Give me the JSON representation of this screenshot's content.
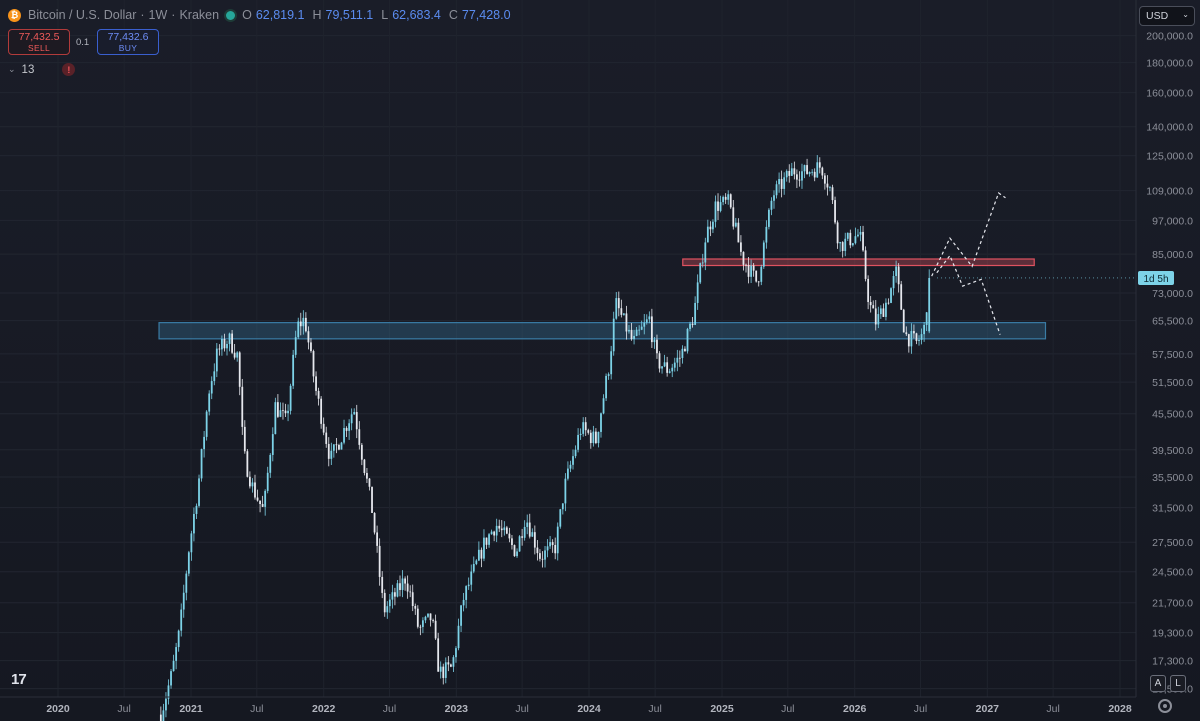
{
  "header": {
    "symbol": "Bitcoin / U.S. Dollar",
    "interval": "1W",
    "exchange": "Kraken",
    "icon": "bitcoin-icon",
    "ohlc": [
      {
        "k": "O",
        "v": "62,819.1"
      },
      {
        "k": "H",
        "v": "79,511.1"
      },
      {
        "k": "L",
        "v": "62,683.4"
      },
      {
        "k": "C",
        "v": "77,428.0"
      }
    ]
  },
  "trade": {
    "sell_price": "77,432.5",
    "sell_label": "SELL",
    "quantity": "0.1",
    "buy_price": "77,432.6",
    "buy_label": "BUY"
  },
  "indicators": {
    "count": "13"
  },
  "currency": "USD",
  "price_tag": "1d 5h",
  "corner": {
    "auto_label": "A",
    "log_label": "L"
  },
  "colors": {
    "up_candle": "#7dd3e8",
    "down_candle": "#e6e8ee",
    "support_zone": "#3a7ca5",
    "resistance_zone": "#e05260",
    "price_tag_bg": "#7dd3e8"
  },
  "chart_data": {
    "type": "candlestick",
    "scale": "log",
    "ylim": [
      15000,
      230000
    ],
    "ytick_labels": [
      "200,000.0",
      "180,000.0",
      "160,000.0",
      "140,000.0",
      "125,000.0",
      "109,000.0",
      "97,000.0",
      "85,000.0",
      "73,000.0",
      "65,500.0",
      "57,500.0",
      "51,500.0",
      "45,500.0",
      "39,500.0",
      "35,500.0",
      "31,500.0",
      "27,500.0",
      "24,500.0",
      "21,700.0",
      "19,300.0",
      "17,300.0",
      "15,500.0"
    ],
    "xtick_labels": [
      {
        "t": "2020",
        "d": "2020-01-01",
        "bold": true
      },
      {
        "t": "Jul",
        "d": "2020-07-01",
        "bold": false
      },
      {
        "t": "2021",
        "d": "2021-01-01",
        "bold": true
      },
      {
        "t": "Jul",
        "d": "2021-07-01",
        "bold": false
      },
      {
        "t": "2022",
        "d": "2022-01-01",
        "bold": true
      },
      {
        "t": "Jul",
        "d": "2022-07-01",
        "bold": false
      },
      {
        "t": "2023",
        "d": "2023-01-01",
        "bold": true
      },
      {
        "t": "Jul",
        "d": "2023-07-01",
        "bold": false
      },
      {
        "t": "2024",
        "d": "2024-01-01",
        "bold": true
      },
      {
        "t": "Jul",
        "d": "2024-07-01",
        "bold": false
      },
      {
        "t": "2025",
        "d": "2025-01-01",
        "bold": true
      },
      {
        "t": "Jul",
        "d": "2025-07-01",
        "bold": false
      },
      {
        "t": "2026",
        "d": "2026-01-01",
        "bold": true
      },
      {
        "t": "Jul",
        "d": "2026-07-01",
        "bold": false
      },
      {
        "t": "2027",
        "d": "2027-01-01",
        "bold": true
      },
      {
        "t": "Jul",
        "d": "2027-07-01",
        "bold": false
      },
      {
        "t": "2028",
        "d": "2028-01-01",
        "bold": true
      }
    ],
    "price_path": [
      [
        "2020-10-10",
        14000
      ],
      [
        "2020-11-10",
        16500
      ],
      [
        "2020-12-01",
        19500
      ],
      [
        "2020-12-25",
        26500
      ],
      [
        "2021-01-20",
        34000
      ],
      [
        "2021-02-20",
        50000
      ],
      [
        "2021-03-15",
        58000
      ],
      [
        "2021-04-15",
        61000
      ],
      [
        "2021-05-10",
        57000
      ],
      [
        "2021-05-25",
        39000
      ],
      [
        "2021-06-20",
        34000
      ],
      [
        "2021-07-20",
        31000
      ],
      [
        "2021-08-20",
        47000
      ],
      [
        "2021-09-20",
        44000
      ],
      [
        "2021-10-20",
        64000
      ],
      [
        "2021-11-10",
        66000
      ],
      [
        "2021-12-10",
        50000
      ],
      [
        "2022-01-20",
        38000
      ],
      [
        "2022-03-25",
        46500
      ],
      [
        "2022-05-15",
        31000
      ],
      [
        "2022-06-15",
        21000
      ],
      [
        "2022-07-20",
        22500
      ],
      [
        "2022-08-15",
        24000
      ],
      [
        "2022-09-20",
        19500
      ],
      [
        "2022-10-25",
        20500
      ],
      [
        "2022-11-15",
        16500
      ],
      [
        "2022-12-20",
        16800
      ],
      [
        "2023-01-20",
        22000
      ],
      [
        "2023-03-20",
        27500
      ],
      [
        "2023-04-20",
        29500
      ],
      [
        "2023-06-15",
        26500
      ],
      [
        "2023-07-10",
        30500
      ],
      [
        "2023-08-20",
        26000
      ],
      [
        "2023-10-01",
        27000
      ],
      [
        "2023-10-25",
        34000
      ],
      [
        "2023-12-10",
        43000
      ],
      [
        "2024-01-20",
        41000
      ],
      [
        "2024-02-25",
        55000
      ],
      [
        "2024-03-15",
        70000
      ],
      [
        "2024-05-01",
        60000
      ],
      [
        "2024-06-15",
        66000
      ],
      [
        "2024-07-05",
        56000
      ],
      [
        "2024-08-05",
        54000
      ],
      [
        "2024-09-10",
        57000
      ],
      [
        "2024-10-15",
        67000
      ],
      [
        "2024-11-15",
        90000
      ],
      [
        "2024-12-15",
        103000
      ],
      [
        "2025-01-20",
        104000
      ],
      [
        "2025-02-25",
        84000
      ],
      [
        "2025-04-08",
        76000
      ],
      [
        "2025-05-20",
        107000
      ],
      [
        "2025-07-15",
        118000
      ],
      [
        "2025-08-15",
        117000
      ],
      [
        "2025-10-01",
        120000
      ],
      [
        "2025-10-25",
        110000
      ],
      [
        "2025-11-20",
        88000
      ],
      [
        "2026-01-15",
        92000
      ],
      [
        "2026-02-10",
        70000
      ],
      [
        "2026-03-01",
        65000
      ],
      [
        "2026-04-01",
        71000
      ],
      [
        "2026-04-25",
        79000
      ],
      [
        "2026-05-20",
        62000
      ],
      [
        "2026-06-20",
        60000
      ],
      [
        "2026-07-10",
        62500
      ],
      [
        "2026-07-25",
        77428
      ]
    ],
    "zones": [
      {
        "type": "support",
        "from": "2020-10-05",
        "to": "2027-06-10",
        "low": 61000,
        "high": 65000
      },
      {
        "type": "resistance",
        "from": "2024-09-15",
        "to": "2027-05-10",
        "low": 81300,
        "high": 83400
      }
    ],
    "projections": [
      [
        [
          "2026-08-01",
          78000
        ],
        [
          "2026-09-20",
          90500
        ],
        [
          "2026-11-20",
          81000
        ],
        [
          "2027-02-01",
          108000
        ],
        [
          "2027-02-20",
          106000
        ]
      ],
      [
        [
          "2026-08-15",
          79000
        ],
        [
          "2026-09-20",
          84500
        ],
        [
          "2026-10-25",
          75000
        ],
        [
          "2026-12-15",
          77000
        ],
        [
          "2027-02-05",
          62000
        ]
      ]
    ],
    "current_price": 77428
  }
}
